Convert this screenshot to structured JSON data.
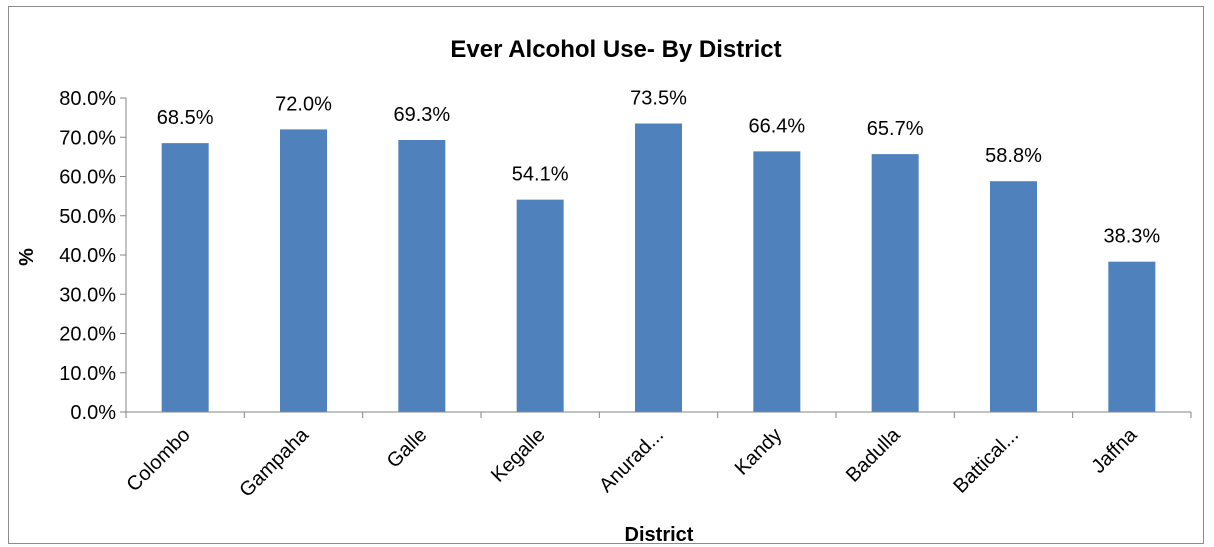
{
  "chart_data": {
    "type": "bar",
    "title": "Ever Alcohol Use- By District",
    "xlabel": "District",
    "ylabel": "%",
    "categories": [
      "Colombo",
      "Gampaha",
      "Galle",
      "Kegalle",
      "Anurad...",
      "Kandy",
      "Badulla",
      "Battical...",
      "Jaffna"
    ],
    "values": [
      68.5,
      72.0,
      69.3,
      54.1,
      73.5,
      66.4,
      65.7,
      58.8,
      38.3
    ],
    "data_labels": [
      "68.5%",
      "72.0%",
      "69.3%",
      "54.1%",
      "73.5%",
      "66.4%",
      "65.7%",
      "58.8%",
      "38.3%"
    ],
    "ylim": [
      0,
      80
    ],
    "yticks": [
      0,
      10,
      20,
      30,
      40,
      50,
      60,
      70,
      80
    ],
    "ytick_labels": [
      "0.0%",
      "10.0%",
      "20.0%",
      "30.0%",
      "40.0%",
      "50.0%",
      "60.0%",
      "70.0%",
      "80.0%"
    ],
    "grid": false,
    "legend": "none",
    "bar_color": "#4f81bd",
    "axis_color": "#868686"
  }
}
